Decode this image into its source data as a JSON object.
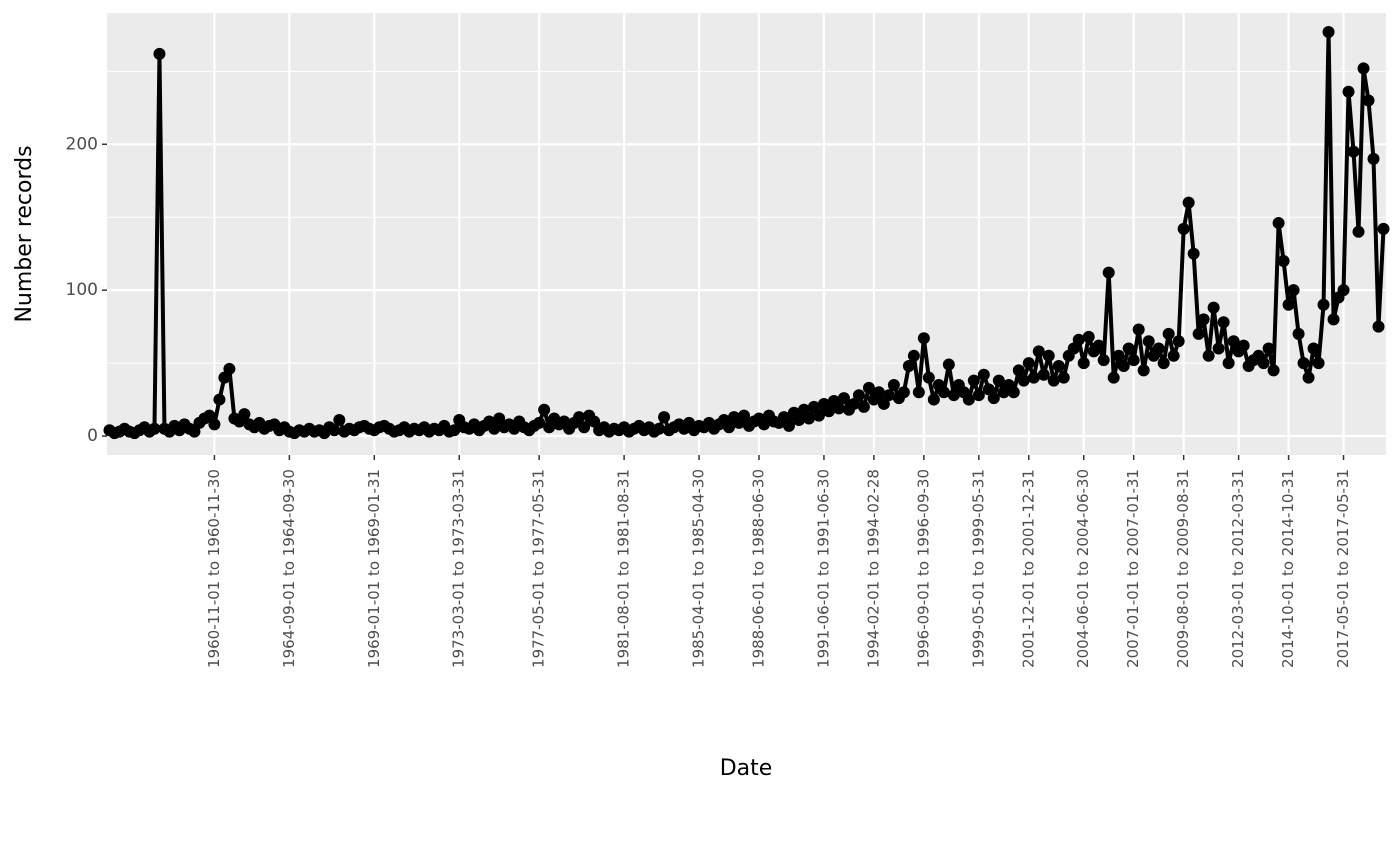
{
  "chart_data": {
    "type": "line",
    "x_label": "Date",
    "y_label": "Number records",
    "categories": [
      null,
      null,
      null,
      null,
      null,
      null,
      null,
      null,
      null,
      null,
      null,
      null,
      null,
      null,
      null,
      null,
      null,
      null,
      null,
      null,
      null,
      "1960-11-01 to 1960-11-30",
      null,
      null,
      null,
      null,
      null,
      null,
      null,
      null,
      null,
      null,
      null,
      null,
      null,
      null,
      "1964-09-01 to 1964-09-30",
      null,
      null,
      null,
      null,
      null,
      null,
      null,
      null,
      null,
      null,
      null,
      null,
      null,
      null,
      null,
      null,
      "1969-01-01 to 1969-01-31",
      null,
      null,
      null,
      null,
      null,
      null,
      null,
      null,
      null,
      null,
      null,
      null,
      null,
      null,
      null,
      null,
      "1973-03-01 to 1973-03-31",
      null,
      null,
      null,
      null,
      null,
      null,
      null,
      null,
      null,
      null,
      null,
      null,
      null,
      null,
      null,
      "1977-05-01 to 1977-05-31",
      null,
      null,
      null,
      null,
      null,
      null,
      null,
      null,
      null,
      null,
      null,
      null,
      null,
      null,
      null,
      null,
      "1981-08-01 to 1981-08-31",
      null,
      null,
      null,
      null,
      null,
      null,
      null,
      null,
      null,
      null,
      null,
      null,
      null,
      null,
      "1985-04-01 to 1985-04-30",
      null,
      null,
      null,
      null,
      null,
      null,
      null,
      null,
      null,
      null,
      null,
      "1988-06-01 to 1988-06-30",
      null,
      null,
      null,
      null,
      null,
      null,
      null,
      null,
      null,
      null,
      null,
      null,
      "1991-06-01 to 1991-06-30",
      null,
      null,
      null,
      null,
      null,
      null,
      null,
      null,
      null,
      "1994-02-01 to 1994-02-28",
      null,
      null,
      null,
      null,
      null,
      null,
      null,
      null,
      null,
      "1996-09-01 to 1996-09-30",
      null,
      null,
      null,
      null,
      null,
      null,
      null,
      null,
      null,
      null,
      "1999-05-01 to 1999-05-31",
      null,
      null,
      null,
      null,
      null,
      null,
      null,
      null,
      null,
      "2001-12-01 to 2001-12-31",
      null,
      null,
      null,
      null,
      null,
      null,
      null,
      null,
      null,
      null,
      "2004-06-01 to 2004-06-30",
      null,
      null,
      null,
      null,
      null,
      null,
      null,
      null,
      null,
      "2007-01-01 to 2007-01-31",
      null,
      null,
      null,
      null,
      null,
      null,
      null,
      null,
      null,
      "2009-08-01 to 2009-08-31",
      null,
      null,
      null,
      null,
      null,
      null,
      null,
      null,
      null,
      null,
      "2012-03-01 to 2012-03-31",
      null,
      null,
      null,
      null,
      null,
      null,
      null,
      null,
      null,
      "2014-10-01 to 2014-10-31",
      null,
      null,
      null,
      null,
      null,
      null,
      null,
      null,
      null,
      null,
      "2017-05-01 to 2017-05-31",
      null,
      null,
      null,
      null,
      null,
      null,
      null,
      null
    ],
    "values": [
      4,
      2,
      3,
      5,
      3,
      2,
      4,
      6,
      3,
      5,
      262,
      5,
      3,
      7,
      4,
      8,
      5,
      3,
      9,
      12,
      14,
      8,
      25,
      40,
      46,
      12,
      10,
      15,
      8,
      6,
      9,
      5,
      7,
      8,
      4,
      6,
      3,
      2,
      4,
      3,
      5,
      3,
      4,
      2,
      6,
      4,
      11,
      3,
      5,
      4,
      6,
      7,
      5,
      4,
      6,
      7,
      5,
      3,
      4,
      6,
      3,
      5,
      4,
      6,
      3,
      5,
      4,
      7,
      3,
      4,
      11,
      6,
      5,
      8,
      4,
      7,
      10,
      5,
      12,
      6,
      8,
      5,
      10,
      6,
      4,
      7,
      9,
      18,
      6,
      12,
      8,
      10,
      5,
      9,
      13,
      6,
      14,
      10,
      4,
      6,
      3,
      5,
      4,
      6,
      3,
      5,
      7,
      4,
      6,
      3,
      5,
      13,
      4,
      6,
      8,
      5,
      9,
      4,
      7,
      6,
      9,
      5,
      8,
      11,
      6,
      13,
      9,
      14,
      7,
      10,
      12,
      8,
      14,
      10,
      9,
      13,
      7,
      16,
      11,
      18,
      12,
      20,
      14,
      22,
      17,
      24,
      19,
      26,
      18,
      22,
      28,
      20,
      33,
      25,
      30,
      22,
      28,
      35,
      26,
      30,
      48,
      55,
      30,
      67,
      40,
      25,
      35,
      30,
      49,
      28,
      35,
      30,
      25,
      38,
      28,
      42,
      32,
      26,
      38,
      30,
      35,
      30,
      45,
      38,
      50,
      40,
      58,
      42,
      55,
      38,
      48,
      40,
      55,
      60,
      66,
      50,
      68,
      58,
      62,
      52,
      112,
      40,
      55,
      48,
      60,
      52,
      73,
      45,
      65,
      55,
      60,
      50,
      70,
      55,
      65,
      142,
      160,
      125,
      70,
      80,
      55,
      88,
      60,
      78,
      50,
      65,
      58,
      62,
      48,
      52,
      55,
      50,
      60,
      45,
      146,
      120,
      90,
      100,
      70,
      50,
      40,
      60,
      50,
      90,
      277,
      80,
      95,
      100,
      236,
      195,
      140,
      252,
      230,
      190,
      75,
      142
    ],
    "color": "#000000",
    "ylim": [
      -13,
      290
    ],
    "yticks": [
      0,
      100,
      200
    ],
    "grid": true
  }
}
